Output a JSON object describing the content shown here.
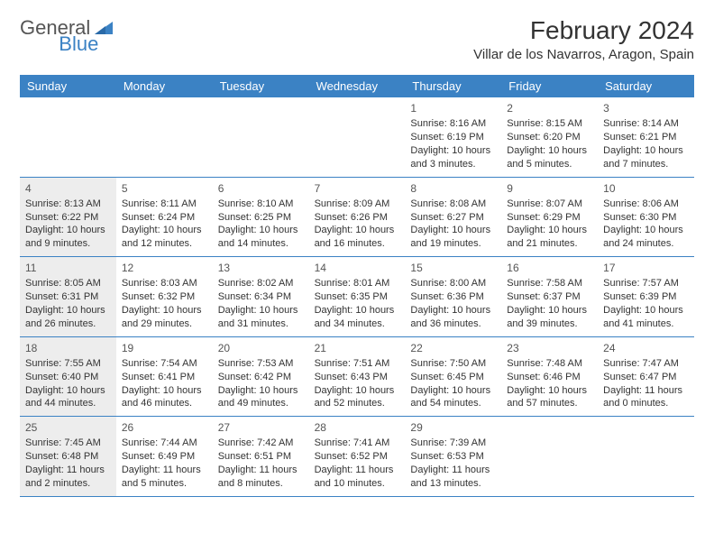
{
  "brand": {
    "text1": "General",
    "text2": "Blue",
    "text1_color": "#555555",
    "text2_color": "#3b82c4",
    "icon_color": "#3b82c4"
  },
  "header": {
    "month_title": "February 2024",
    "location": "Villar de los Navarros, Aragon, Spain"
  },
  "style": {
    "header_bg": "#3b82c4",
    "header_fg": "#ffffff",
    "shade_bg": "#ededed",
    "border_color": "#3b82c4",
    "body_font_size": 11,
    "title_font_size": 28,
    "location_font_size": 15
  },
  "day_labels": [
    "Sunday",
    "Monday",
    "Tuesday",
    "Wednesday",
    "Thursday",
    "Friday",
    "Saturday"
  ],
  "weeks": [
    [
      {
        "empty": true
      },
      {
        "empty": true
      },
      {
        "empty": true
      },
      {
        "empty": true
      },
      {
        "num": "1",
        "shaded": false,
        "sunrise": "Sunrise: 8:16 AM",
        "sunset": "Sunset: 6:19 PM",
        "day1": "Daylight: 10 hours",
        "day2": "and 3 minutes."
      },
      {
        "num": "2",
        "shaded": false,
        "sunrise": "Sunrise: 8:15 AM",
        "sunset": "Sunset: 6:20 PM",
        "day1": "Daylight: 10 hours",
        "day2": "and 5 minutes."
      },
      {
        "num": "3",
        "shaded": false,
        "sunrise": "Sunrise: 8:14 AM",
        "sunset": "Sunset: 6:21 PM",
        "day1": "Daylight: 10 hours",
        "day2": "and 7 minutes."
      }
    ],
    [
      {
        "num": "4",
        "shaded": true,
        "sunrise": "Sunrise: 8:13 AM",
        "sunset": "Sunset: 6:22 PM",
        "day1": "Daylight: 10 hours",
        "day2": "and 9 minutes."
      },
      {
        "num": "5",
        "shaded": false,
        "sunrise": "Sunrise: 8:11 AM",
        "sunset": "Sunset: 6:24 PM",
        "day1": "Daylight: 10 hours",
        "day2": "and 12 minutes."
      },
      {
        "num": "6",
        "shaded": false,
        "sunrise": "Sunrise: 8:10 AM",
        "sunset": "Sunset: 6:25 PM",
        "day1": "Daylight: 10 hours",
        "day2": "and 14 minutes."
      },
      {
        "num": "7",
        "shaded": false,
        "sunrise": "Sunrise: 8:09 AM",
        "sunset": "Sunset: 6:26 PM",
        "day1": "Daylight: 10 hours",
        "day2": "and 16 minutes."
      },
      {
        "num": "8",
        "shaded": false,
        "sunrise": "Sunrise: 8:08 AM",
        "sunset": "Sunset: 6:27 PM",
        "day1": "Daylight: 10 hours",
        "day2": "and 19 minutes."
      },
      {
        "num": "9",
        "shaded": false,
        "sunrise": "Sunrise: 8:07 AM",
        "sunset": "Sunset: 6:29 PM",
        "day1": "Daylight: 10 hours",
        "day2": "and 21 minutes."
      },
      {
        "num": "10",
        "shaded": false,
        "sunrise": "Sunrise: 8:06 AM",
        "sunset": "Sunset: 6:30 PM",
        "day1": "Daylight: 10 hours",
        "day2": "and 24 minutes."
      }
    ],
    [
      {
        "num": "11",
        "shaded": true,
        "sunrise": "Sunrise: 8:05 AM",
        "sunset": "Sunset: 6:31 PM",
        "day1": "Daylight: 10 hours",
        "day2": "and 26 minutes."
      },
      {
        "num": "12",
        "shaded": false,
        "sunrise": "Sunrise: 8:03 AM",
        "sunset": "Sunset: 6:32 PM",
        "day1": "Daylight: 10 hours",
        "day2": "and 29 minutes."
      },
      {
        "num": "13",
        "shaded": false,
        "sunrise": "Sunrise: 8:02 AM",
        "sunset": "Sunset: 6:34 PM",
        "day1": "Daylight: 10 hours",
        "day2": "and 31 minutes."
      },
      {
        "num": "14",
        "shaded": false,
        "sunrise": "Sunrise: 8:01 AM",
        "sunset": "Sunset: 6:35 PM",
        "day1": "Daylight: 10 hours",
        "day2": "and 34 minutes."
      },
      {
        "num": "15",
        "shaded": false,
        "sunrise": "Sunrise: 8:00 AM",
        "sunset": "Sunset: 6:36 PM",
        "day1": "Daylight: 10 hours",
        "day2": "and 36 minutes."
      },
      {
        "num": "16",
        "shaded": false,
        "sunrise": "Sunrise: 7:58 AM",
        "sunset": "Sunset: 6:37 PM",
        "day1": "Daylight: 10 hours",
        "day2": "and 39 minutes."
      },
      {
        "num": "17",
        "shaded": false,
        "sunrise": "Sunrise: 7:57 AM",
        "sunset": "Sunset: 6:39 PM",
        "day1": "Daylight: 10 hours",
        "day2": "and 41 minutes."
      }
    ],
    [
      {
        "num": "18",
        "shaded": true,
        "sunrise": "Sunrise: 7:55 AM",
        "sunset": "Sunset: 6:40 PM",
        "day1": "Daylight: 10 hours",
        "day2": "and 44 minutes."
      },
      {
        "num": "19",
        "shaded": false,
        "sunrise": "Sunrise: 7:54 AM",
        "sunset": "Sunset: 6:41 PM",
        "day1": "Daylight: 10 hours",
        "day2": "and 46 minutes."
      },
      {
        "num": "20",
        "shaded": false,
        "sunrise": "Sunrise: 7:53 AM",
        "sunset": "Sunset: 6:42 PM",
        "day1": "Daylight: 10 hours",
        "day2": "and 49 minutes."
      },
      {
        "num": "21",
        "shaded": false,
        "sunrise": "Sunrise: 7:51 AM",
        "sunset": "Sunset: 6:43 PM",
        "day1": "Daylight: 10 hours",
        "day2": "and 52 minutes."
      },
      {
        "num": "22",
        "shaded": false,
        "sunrise": "Sunrise: 7:50 AM",
        "sunset": "Sunset: 6:45 PM",
        "day1": "Daylight: 10 hours",
        "day2": "and 54 minutes."
      },
      {
        "num": "23",
        "shaded": false,
        "sunrise": "Sunrise: 7:48 AM",
        "sunset": "Sunset: 6:46 PM",
        "day1": "Daylight: 10 hours",
        "day2": "and 57 minutes."
      },
      {
        "num": "24",
        "shaded": false,
        "sunrise": "Sunrise: 7:47 AM",
        "sunset": "Sunset: 6:47 PM",
        "day1": "Daylight: 11 hours",
        "day2": "and 0 minutes."
      }
    ],
    [
      {
        "num": "25",
        "shaded": true,
        "sunrise": "Sunrise: 7:45 AM",
        "sunset": "Sunset: 6:48 PM",
        "day1": "Daylight: 11 hours",
        "day2": "and 2 minutes."
      },
      {
        "num": "26",
        "shaded": false,
        "sunrise": "Sunrise: 7:44 AM",
        "sunset": "Sunset: 6:49 PM",
        "day1": "Daylight: 11 hours",
        "day2": "and 5 minutes."
      },
      {
        "num": "27",
        "shaded": false,
        "sunrise": "Sunrise: 7:42 AM",
        "sunset": "Sunset: 6:51 PM",
        "day1": "Daylight: 11 hours",
        "day2": "and 8 minutes."
      },
      {
        "num": "28",
        "shaded": false,
        "sunrise": "Sunrise: 7:41 AM",
        "sunset": "Sunset: 6:52 PM",
        "day1": "Daylight: 11 hours",
        "day2": "and 10 minutes."
      },
      {
        "num": "29",
        "shaded": false,
        "sunrise": "Sunrise: 7:39 AM",
        "sunset": "Sunset: 6:53 PM",
        "day1": "Daylight: 11 hours",
        "day2": "and 13 minutes."
      },
      {
        "empty": true
      },
      {
        "empty": true
      }
    ]
  ]
}
